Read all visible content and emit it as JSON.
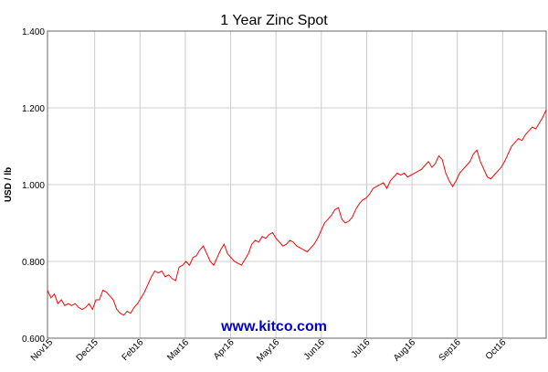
{
  "chart_data": {
    "type": "line",
    "title": "1 Year Zinc Spot",
    "xlabel": "",
    "ylabel": "USD / lb",
    "ylim": [
      0.6,
      1.4
    ],
    "y_ticks": [
      "0.600",
      "0.800",
      "1.000",
      "1.200",
      "1.400"
    ],
    "x_ticks": [
      "Nov15",
      "Dec15",
      "Feb16",
      "Mar16",
      "Apr16",
      "May16",
      "Jun16",
      "Jul16",
      "Aug16",
      "Sep16",
      "Oct16"
    ],
    "grid": true,
    "line_color": "#ff0000",
    "watermark": "www.kitco.com",
    "series": [
      {
        "values": [
          0.725,
          0.705,
          0.715,
          0.69,
          0.7,
          0.685,
          0.69,
          0.685,
          0.69,
          0.68,
          0.675,
          0.68,
          0.69,
          0.675,
          0.7,
          0.7,
          0.725,
          0.72,
          0.71,
          0.7,
          0.675,
          0.665,
          0.66,
          0.67,
          0.665,
          0.68,
          0.69,
          0.705,
          0.72,
          0.74,
          0.76,
          0.775,
          0.77,
          0.775,
          0.76,
          0.765,
          0.755,
          0.75,
          0.785,
          0.79,
          0.8,
          0.79,
          0.81,
          0.815,
          0.83,
          0.84,
          0.82,
          0.8,
          0.79,
          0.81,
          0.83,
          0.845,
          0.82,
          0.81,
          0.8,
          0.795,
          0.79,
          0.805,
          0.82,
          0.845,
          0.855,
          0.85,
          0.865,
          0.86,
          0.87,
          0.875,
          0.86,
          0.85,
          0.84,
          0.845,
          0.855,
          0.85,
          0.84,
          0.835,
          0.83,
          0.825,
          0.835,
          0.845,
          0.86,
          0.88,
          0.9,
          0.91,
          0.92,
          0.935,
          0.94,
          0.91,
          0.9,
          0.905,
          0.915,
          0.935,
          0.95,
          0.96,
          0.965,
          0.975,
          0.99,
          0.995,
          1.0,
          1.005,
          0.99,
          1.01,
          1.02,
          1.03,
          1.025,
          1.03,
          1.02,
          1.025,
          1.03,
          1.035,
          1.04,
          1.05,
          1.06,
          1.045,
          1.055,
          1.075,
          1.065,
          1.03,
          1.01,
          0.995,
          1.01,
          1.03,
          1.04,
          1.05,
          1.06,
          1.08,
          1.09,
          1.06,
          1.04,
          1.02,
          1.015,
          1.025,
          1.035,
          1.045,
          1.06,
          1.08,
          1.1,
          1.11,
          1.12,
          1.115,
          1.13,
          1.14,
          1.15,
          1.145,
          1.16,
          1.175,
          1.195
        ]
      }
    ]
  }
}
